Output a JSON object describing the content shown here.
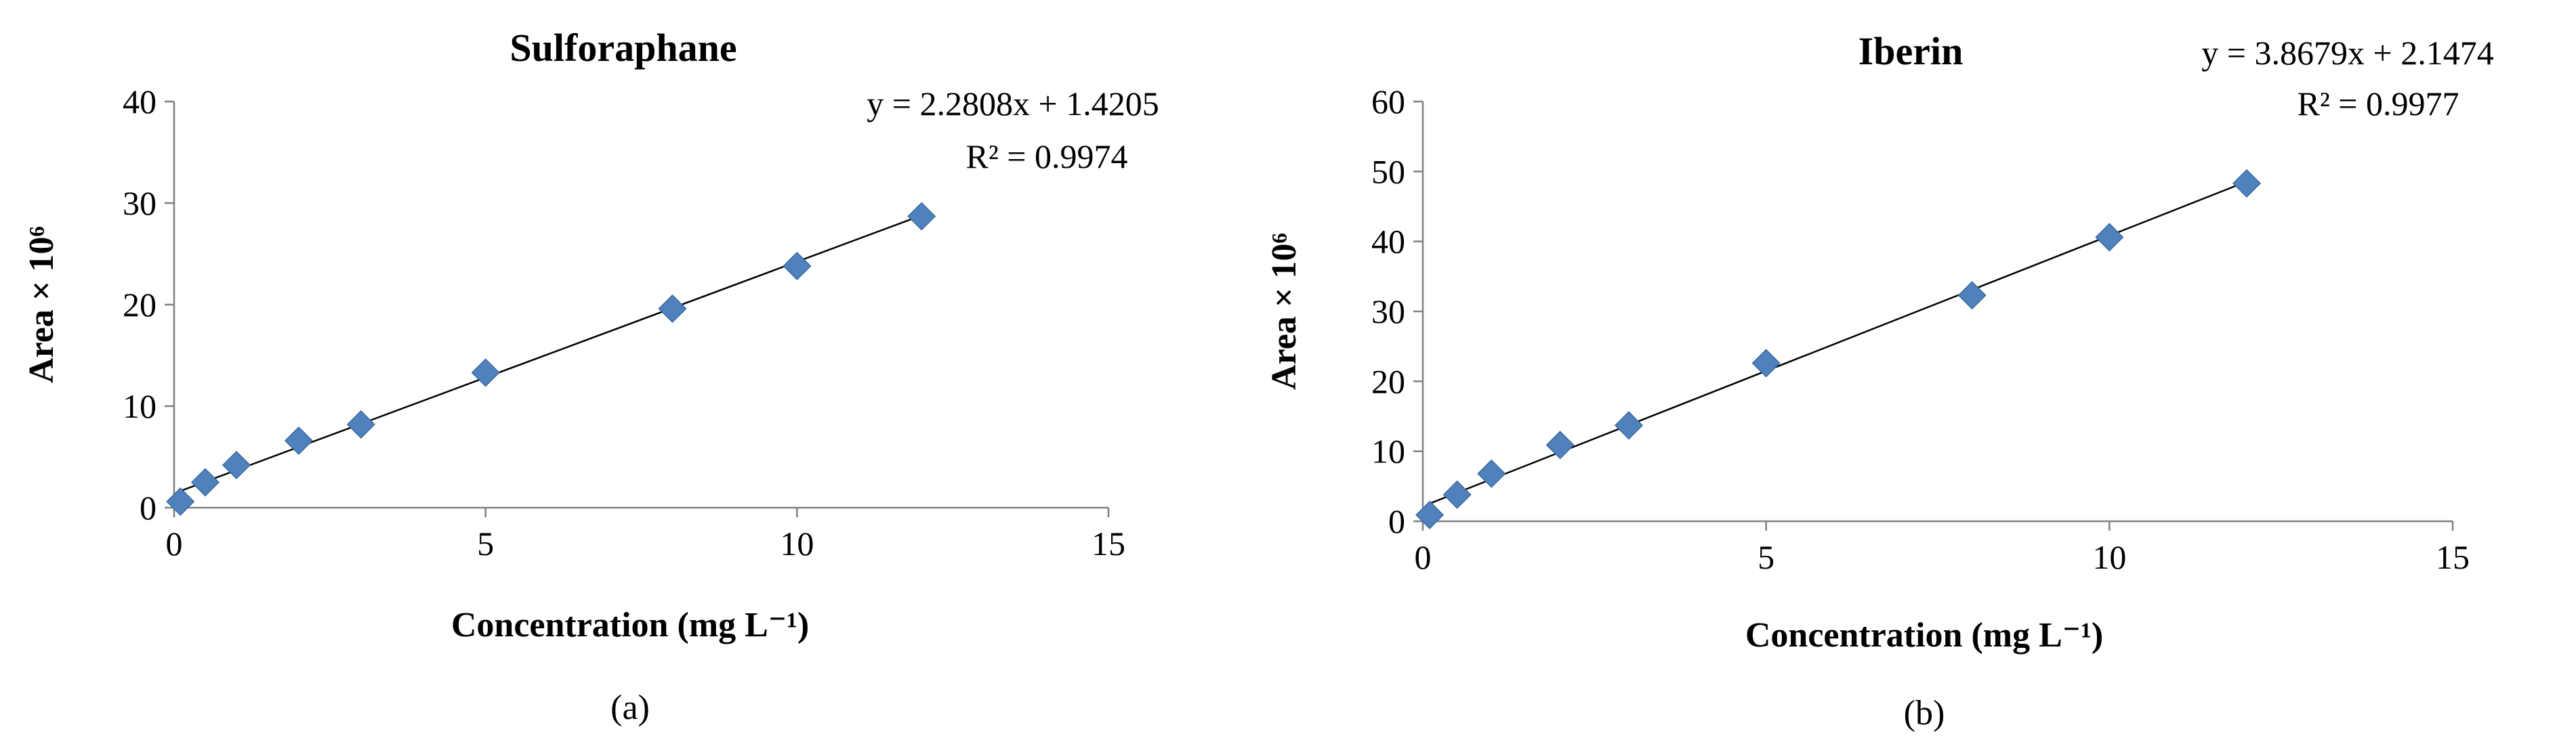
{
  "chart_data": [
    {
      "type": "scatter",
      "title": "Sulforaphane",
      "xlabel": "Concentration (mg L⁻¹)",
      "ylabel": "Area × 10⁶",
      "xlim": [
        0,
        15
      ],
      "ylim": [
        0,
        40
      ],
      "xticks": [
        "0",
        "5",
        "10",
        "15"
      ],
      "yticks": [
        "0",
        "10",
        "20",
        "30",
        "40"
      ],
      "grid": false,
      "legend": "none",
      "marker_color": "#4F81BD",
      "series": [
        {
          "x": [
            0.1,
            0.5,
            1,
            2,
            3,
            5,
            8,
            10,
            12
          ],
          "y": [
            0.6,
            2.5,
            4.2,
            6.6,
            8.2,
            13.3,
            19.6,
            23.8,
            28.7
          ]
        }
      ],
      "trendline": {
        "slope": 2.2808,
        "intercept": 1.4205,
        "x_range": [
          0.1,
          12
        ]
      },
      "equation": "y = 2.2808x + 1.4205",
      "r_squared": "R² = 0.9974",
      "panel_label": "(a)"
    },
    {
      "type": "scatter",
      "title": "Iberin",
      "xlabel": "Concentration (mg L⁻¹)",
      "ylabel": "Area × 10⁶",
      "xlim": [
        0,
        15
      ],
      "ylim": [
        0,
        60
      ],
      "xticks": [
        "0",
        "5",
        "10",
        "15"
      ],
      "yticks": [
        "0",
        "10",
        "20",
        "30",
        "40",
        "50",
        "60"
      ],
      "grid": false,
      "legend": "none",
      "marker_color": "#4F81BD",
      "series": [
        {
          "x": [
            0.1,
            0.5,
            1,
            2,
            3,
            5,
            8,
            10,
            12
          ],
          "y": [
            0.9,
            3.8,
            6.8,
            10.9,
            13.7,
            22.6,
            32.3,
            40.6,
            48.3
          ]
        }
      ],
      "trendline": {
        "slope": 3.8679,
        "intercept": 2.1474,
        "x_range": [
          0.1,
          12
        ]
      },
      "equation": "y = 3.8679x + 2.1474",
      "r_squared": "R² = 0.9977",
      "panel_label": "(b)"
    }
  ]
}
